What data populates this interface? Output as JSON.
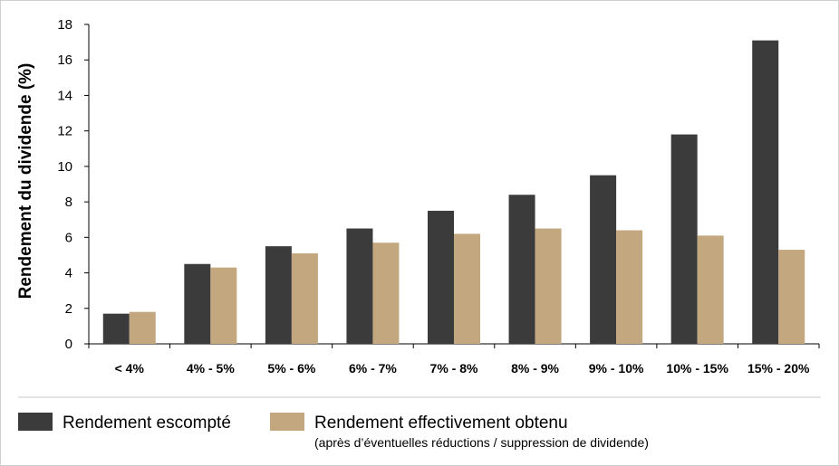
{
  "chart_data": {
    "type": "bar",
    "title": "",
    "xlabel": "",
    "ylabel": "Rendement du dividende (%)",
    "ylim": [
      0,
      18
    ],
    "yticks": [
      0,
      2,
      4,
      6,
      8,
      10,
      12,
      14,
      16,
      18
    ],
    "grid": false,
    "legend_position": "bottom-left",
    "categories": [
      "< 4%",
      "4% - 5%",
      "5% - 6%",
      "6% - 7%",
      "7% - 8%",
      "8% - 9%",
      "9% - 10%",
      "10% - 15%",
      "15% - 20%"
    ],
    "series": [
      {
        "name": "Rendement escompté",
        "color": "#3b3b3b",
        "values": [
          1.7,
          4.5,
          5.5,
          6.5,
          7.5,
          8.4,
          9.5,
          11.8,
          17.1
        ]
      },
      {
        "name": "Rendement effectivement obtenu",
        "note": "(après d’éventuelles réductions / suppression de dividende)",
        "color": "#c3a77f",
        "values": [
          1.8,
          4.3,
          5.1,
          5.7,
          6.2,
          6.5,
          6.4,
          6.1,
          5.3
        ]
      }
    ]
  }
}
